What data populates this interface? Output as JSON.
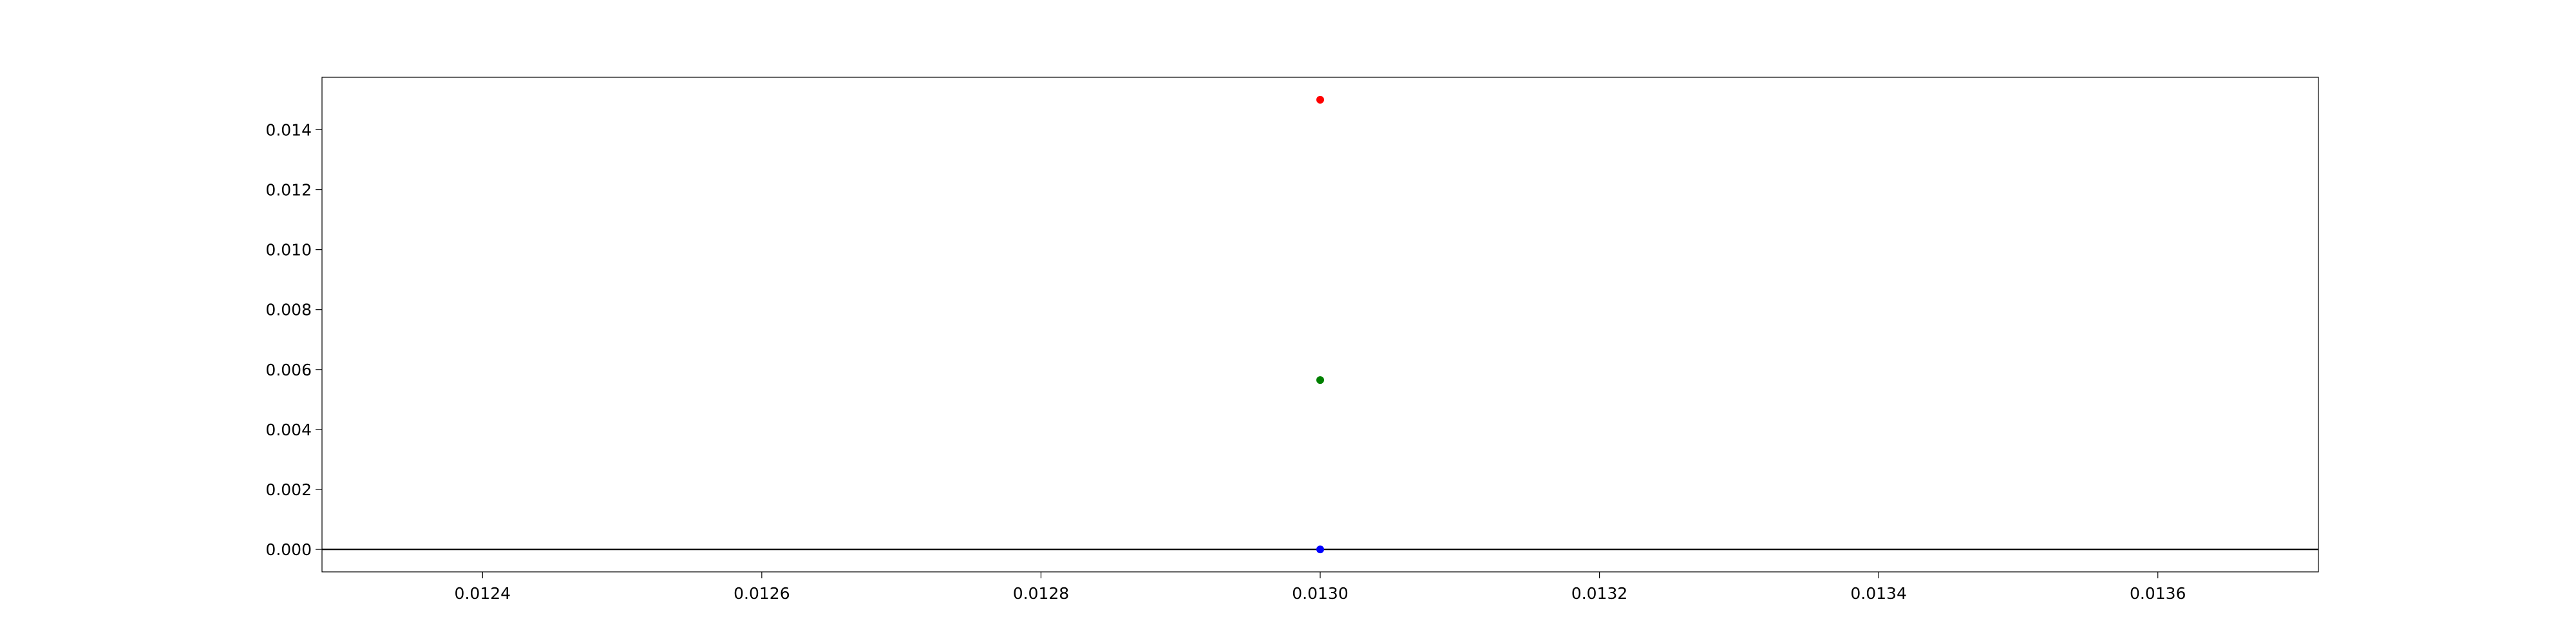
{
  "chart_data": {
    "type": "scatter",
    "title": "",
    "xlabel": "",
    "ylabel": "",
    "xlim": [
      0.012285,
      0.013715
    ],
    "ylim": [
      -0.00075,
      0.01575
    ],
    "x_ticks": [
      0.0124,
      0.0126,
      0.0128,
      0.013,
      0.0132,
      0.0134,
      0.0136
    ],
    "x_tick_labels": [
      "0.0124",
      "0.0126",
      "0.0128",
      "0.0130",
      "0.0132",
      "0.0134",
      "0.0136"
    ],
    "y_ticks": [
      0.0,
      0.002,
      0.004,
      0.006,
      0.008,
      0.01,
      0.012,
      0.014
    ],
    "y_tick_labels": [
      "0.000",
      "0.002",
      "0.004",
      "0.006",
      "0.008",
      "0.010",
      "0.012",
      "0.014"
    ],
    "grid": false,
    "legend": "none",
    "reference_lines": [
      {
        "axis": "y",
        "value": 0.0,
        "color": "#000000"
      }
    ],
    "series": [
      {
        "color": "#ff0000",
        "points": [
          {
            "x": 0.013,
            "y": 0.015
          }
        ]
      },
      {
        "color": "#008000",
        "points": [
          {
            "x": 0.013,
            "y": 0.00565
          }
        ]
      },
      {
        "color": "#0000ff",
        "points": [
          {
            "x": 0.013,
            "y": 0.0
          }
        ]
      }
    ]
  }
}
